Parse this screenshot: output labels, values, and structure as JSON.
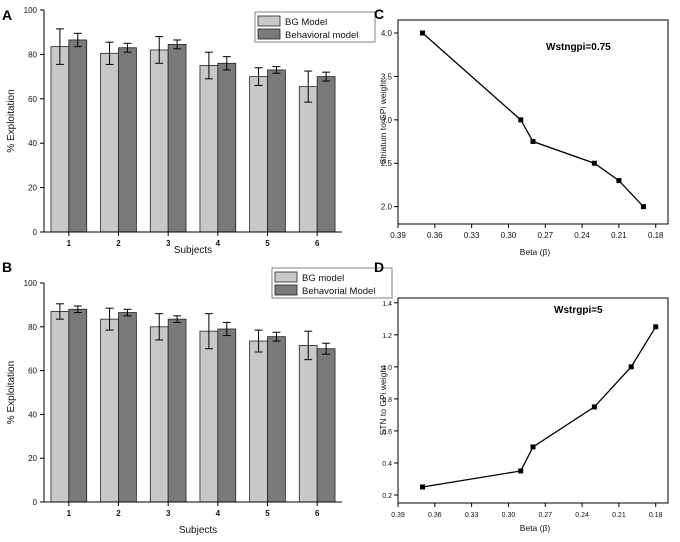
{
  "colors": {
    "bar_light": "#c8c8c8",
    "bar_dark": "#7a7a7a",
    "axis": "#000000",
    "line": "#000000"
  },
  "chart_data": [
    {
      "panel": "A",
      "type": "bar",
      "categories": [
        "1",
        "2",
        "3",
        "4",
        "5",
        "6"
      ],
      "xlabel": "Subjects",
      "ylabel": "% Exploitation",
      "ylim": [
        0,
        100
      ],
      "yticks": [
        0,
        20,
        40,
        60,
        80,
        100
      ],
      "legend_position": "top-right",
      "series": [
        {
          "name": "BG Model",
          "values": [
            83.5,
            80.5,
            82,
            75,
            70,
            65.5
          ],
          "errors": [
            8,
            5,
            6,
            6,
            4,
            7
          ],
          "color": "light"
        },
        {
          "name": "Behavioral model",
          "values": [
            86.5,
            83,
            84.5,
            76,
            73,
            70
          ],
          "errors": [
            3,
            2,
            2,
            3,
            1.5,
            2
          ],
          "color": "dark"
        }
      ]
    },
    {
      "panel": "B",
      "type": "bar",
      "categories": [
        "1",
        "2",
        "3",
        "4",
        "5",
        "6"
      ],
      "xlabel": "Subjects",
      "ylabel": "% Exploitation",
      "ylim": [
        0,
        100
      ],
      "yticks": [
        0,
        20,
        40,
        60,
        80,
        100
      ],
      "legend_position": "top-right",
      "series": [
        {
          "name": "BG model",
          "values": [
            87,
            83.5,
            80,
            78,
            73.5,
            71.5
          ],
          "errors": [
            3.5,
            5,
            6,
            8,
            5,
            6.5
          ],
          "color": "light"
        },
        {
          "name": "Behavorial Model",
          "values": [
            88,
            86.5,
            83.5,
            79,
            75.5,
            70
          ],
          "errors": [
            1.5,
            1.5,
            1.5,
            3,
            2,
            2.5
          ],
          "color": "dark"
        }
      ]
    },
    {
      "panel": "C",
      "type": "line",
      "annotation": "Wstngpi=0.75",
      "xlabel": "Beta (β)",
      "ylabel": "Striatum to GPi weight",
      "xlim": [
        0.39,
        0.17
      ],
      "ylim": [
        1.8,
        4.15
      ],
      "xticks": [
        "0.39",
        "0.36",
        "0.33",
        "0.30",
        "0.27",
        "0.24",
        "0.21",
        "0.18"
      ],
      "yticks": [
        "2.0",
        "2.5",
        "3.0",
        "3.5",
        "4.0"
      ],
      "x": [
        0.37,
        0.29,
        0.28,
        0.23,
        0.21,
        0.19
      ],
      "y": [
        4.0,
        3.0,
        2.75,
        2.5,
        2.3,
        2.0
      ]
    },
    {
      "panel": "D",
      "type": "line",
      "annotation": "Wstrgpi=5",
      "xlabel": "Beta (β)",
      "ylabel": "STN to GPi weight",
      "xlim": [
        0.39,
        0.17
      ],
      "ylim": [
        0.15,
        1.43
      ],
      "xticks": [
        "0.39",
        "0.36",
        "0.33",
        "0.30",
        "0.27",
        "0.24",
        "0.21",
        "0.18"
      ],
      "yticks": [
        "0.2",
        "0.4",
        "0.6",
        "0.8",
        "1.0",
        "1.2",
        "1.4"
      ],
      "x": [
        0.37,
        0.29,
        0.28,
        0.23,
        0.2,
        0.18
      ],
      "y": [
        0.25,
        0.35,
        0.5,
        0.75,
        1.0,
        1.25
      ]
    }
  ]
}
